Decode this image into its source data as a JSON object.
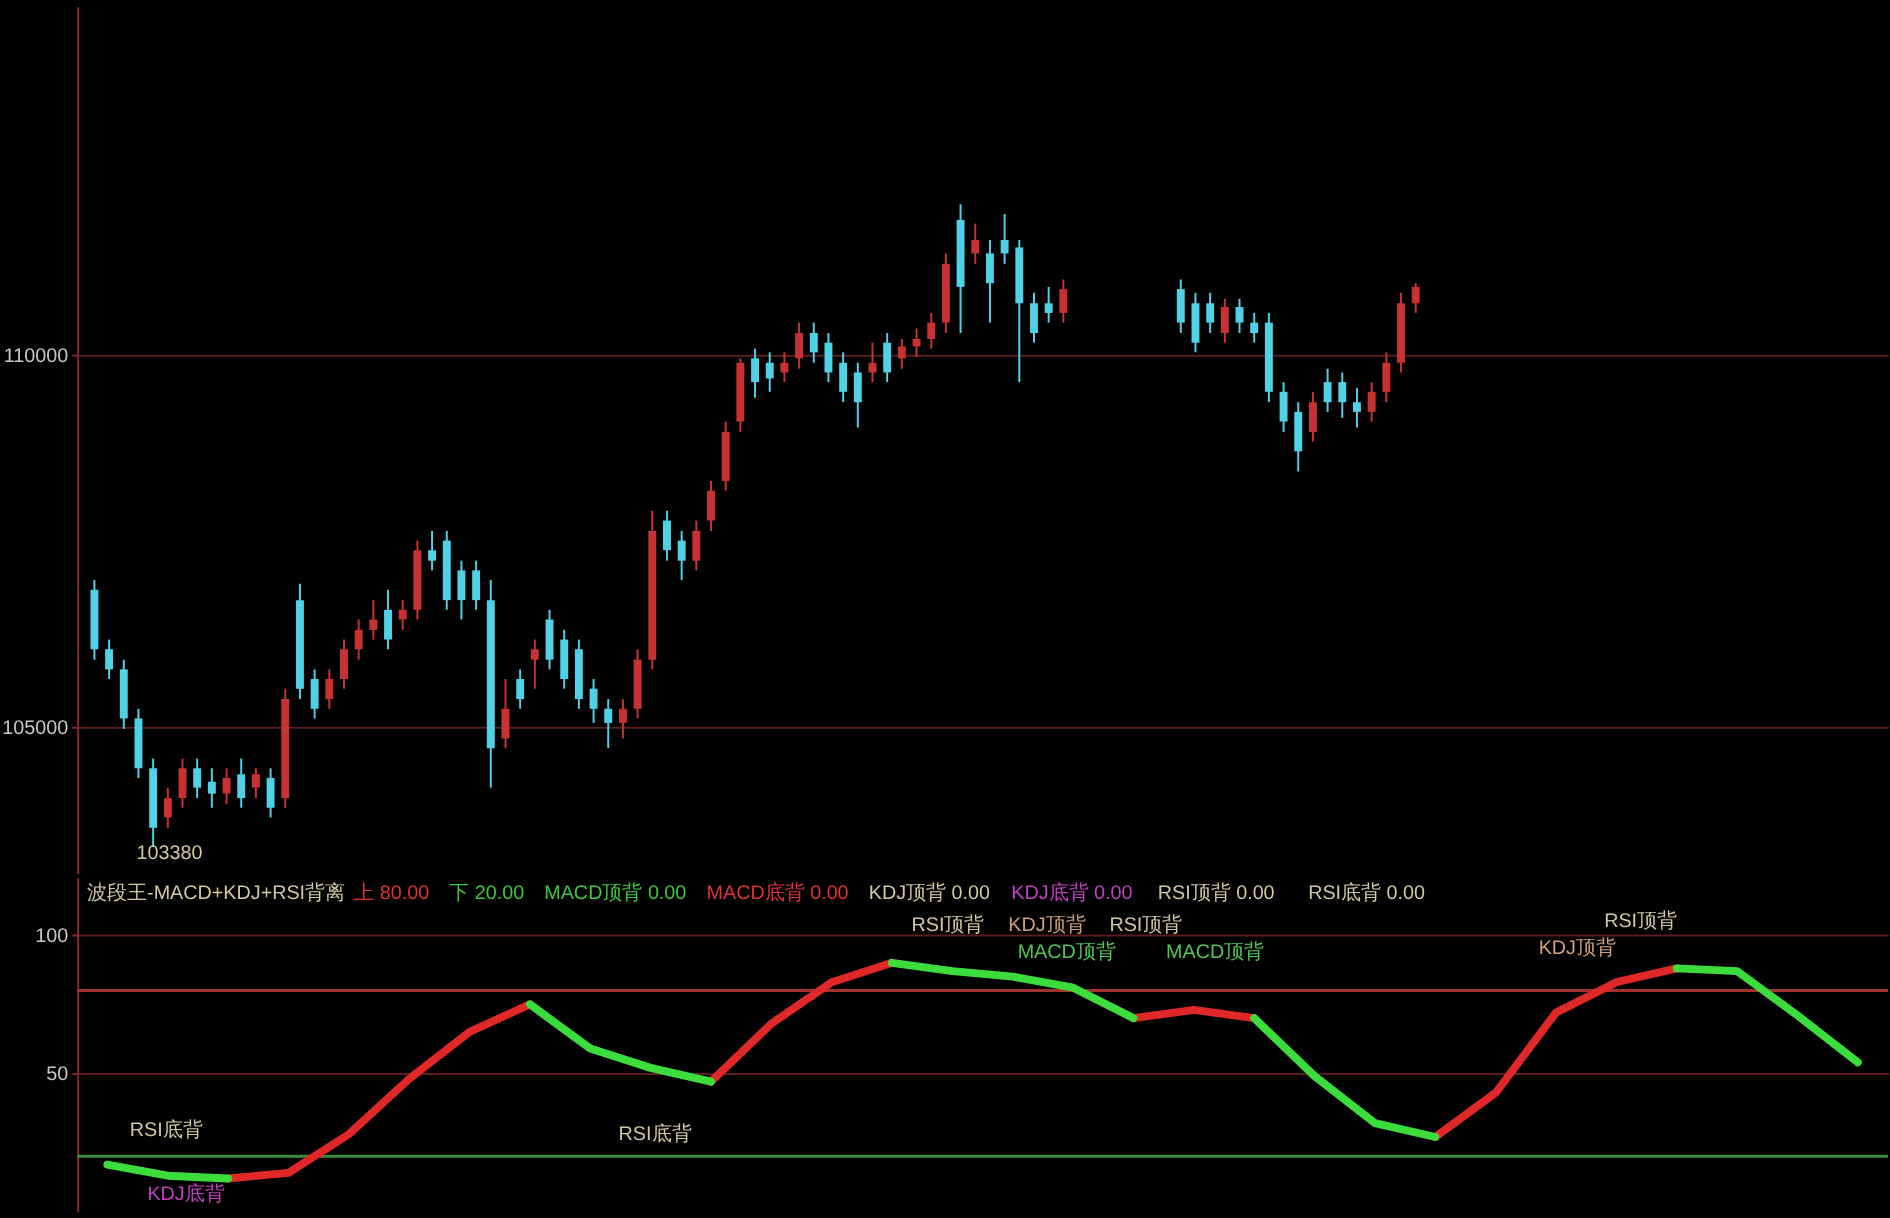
{
  "chart_data": [
    {
      "type": "candlestick",
      "tick_labels": "y",
      "grid": "y",
      "ylim": [
        103030,
        114680
      ],
      "yticks": [
        105000,
        110000
      ],
      "annotations": [
        "103380"
      ],
      "categories": [
        null,
        null,
        null,
        null,
        null,
        null,
        null,
        null,
        null,
        null,
        null,
        null,
        null,
        null,
        null,
        null,
        null,
        null,
        null,
        null,
        null,
        null,
        null,
        null,
        null,
        null,
        null,
        null,
        null,
        null,
        null,
        null,
        null,
        null,
        null,
        null,
        null,
        null,
        null,
        null,
        null,
        null,
        null,
        null,
        null,
        null,
        null,
        null,
        null,
        null,
        null,
        null,
        null,
        null,
        null,
        null,
        null,
        null,
        null,
        null,
        null,
        null,
        null,
        null,
        null,
        null,
        null,
        null,
        null,
        null,
        null,
        null,
        null,
        null,
        null,
        null,
        null,
        null,
        null,
        null,
        null,
        null,
        null,
        null,
        null,
        null,
        null,
        null,
        null,
        null,
        null,
        null,
        null,
        null,
        null,
        null,
        null,
        null,
        null,
        null,
        null,
        null,
        null,
        null,
        null,
        null,
        null,
        null,
        null,
        null,
        null,
        null,
        null,
        null,
        null,
        null,
        null,
        null,
        null,
        null,
        null,
        null
      ],
      "ohlc": [
        [
          106840,
          106970,
          105900,
          106040
        ],
        [
          106040,
          106170,
          105640,
          105770
        ],
        [
          105770,
          105900,
          104970,
          105110
        ],
        [
          105110,
          105240,
          104310,
          104440
        ],
        [
          104440,
          104570,
          103380,
          103640
        ],
        [
          103780,
          104180,
          103640,
          104040
        ],
        [
          104040,
          104570,
          103910,
          104440
        ],
        [
          104440,
          104570,
          104040,
          104180
        ],
        [
          104260,
          104440,
          103910,
          104100
        ],
        [
          104100,
          104440,
          103960,
          104310
        ],
        [
          104360,
          104570,
          103910,
          104040
        ],
        [
          104180,
          104440,
          104040,
          104360
        ],
        [
          104310,
          104440,
          103780,
          103910
        ],
        [
          104040,
          105510,
          103910,
          105370
        ],
        [
          106700,
          106920,
          105370,
          105510
        ],
        [
          105640,
          105770,
          105110,
          105240
        ],
        [
          105370,
          105770,
          105240,
          105640
        ],
        [
          105640,
          106170,
          105510,
          106040
        ],
        [
          106040,
          106440,
          105900,
          106300
        ],
        [
          106300,
          106700,
          106170,
          106440
        ],
        [
          106570,
          106840,
          106040,
          106170
        ],
        [
          106440,
          106700,
          106300,
          106570
        ],
        [
          106570,
          107500,
          106440,
          107370
        ],
        [
          107370,
          107630,
          107100,
          107230
        ],
        [
          107500,
          107630,
          106570,
          106700
        ],
        [
          107100,
          107230,
          106440,
          106700
        ],
        [
          107100,
          107230,
          106570,
          106700
        ],
        [
          106700,
          106970,
          104180,
          104710
        ],
        [
          104840,
          105640,
          104710,
          105240
        ],
        [
          105640,
          105770,
          105240,
          105370
        ],
        [
          105900,
          106170,
          105510,
          106040
        ],
        [
          106440,
          106570,
          105770,
          105900
        ],
        [
          106170,
          106300,
          105510,
          105640
        ],
        [
          106040,
          106170,
          105240,
          105370
        ],
        [
          105510,
          105640,
          105050,
          105240
        ],
        [
          105240,
          105370,
          104710,
          105050
        ],
        [
          105050,
          105370,
          104840,
          105240
        ],
        [
          105240,
          106040,
          105110,
          105900
        ],
        [
          105900,
          107900,
          105770,
          107630
        ],
        [
          107770,
          107900,
          107230,
          107370
        ],
        [
          107500,
          107630,
          106970,
          107230
        ],
        [
          107230,
          107770,
          107100,
          107630
        ],
        [
          107770,
          108300,
          107630,
          108170
        ],
        [
          108300,
          109100,
          108170,
          108960
        ],
        [
          109100,
          109950,
          108960,
          109890
        ],
        [
          109950,
          110080,
          109420,
          109630
        ],
        [
          109890,
          110030,
          109500,
          109680
        ],
        [
          109760,
          110030,
          109630,
          109890
        ],
        [
          109950,
          110430,
          109810,
          110290
        ],
        [
          110290,
          110430,
          109890,
          110030
        ],
        [
          110160,
          110290,
          109630,
          109760
        ],
        [
          109890,
          110030,
          109360,
          109500
        ],
        [
          109760,
          109890,
          109020,
          109360
        ],
        [
          109760,
          110160,
          109630,
          109890
        ],
        [
          110160,
          110290,
          109630,
          109760
        ],
        [
          109950,
          110210,
          109810,
          110110
        ],
        [
          110110,
          110350,
          109970,
          110210
        ],
        [
          110210,
          110560,
          110080,
          110430
        ],
        [
          110430,
          111360,
          110290,
          111220
        ],
        [
          111810,
          112020,
          110290,
          110910
        ],
        [
          111360,
          111760,
          111220,
          111540
        ],
        [
          111360,
          111540,
          110430,
          110960
        ],
        [
          111540,
          111890,
          111220,
          111360
        ],
        [
          111440,
          111540,
          109630,
          110690
        ],
        [
          110690,
          110830,
          110160,
          110290
        ],
        [
          110690,
          110910,
          110430,
          110560
        ],
        [
          110560,
          111010,
          110430,
          110880
        ],
        null,
        null,
        null,
        null,
        null,
        null,
        null,
        [
          110880,
          111010,
          110290,
          110430
        ],
        [
          110690,
          110830,
          110030,
          110160
        ],
        [
          110690,
          110830,
          110290,
          110430
        ],
        [
          110290,
          110750,
          110160,
          110640
        ],
        [
          110640,
          110750,
          110290,
          110430
        ],
        [
          110430,
          110560,
          110160,
          110290
        ],
        [
          110430,
          110560,
          109360,
          109500
        ],
        [
          109500,
          109630,
          108960,
          109100
        ],
        [
          109230,
          109360,
          108430,
          108700
        ],
        [
          108960,
          109500,
          108830,
          109360
        ],
        [
          109630,
          109810,
          109230,
          109360
        ],
        [
          109630,
          109760,
          109150,
          109360
        ],
        [
          109360,
          109550,
          109020,
          109230
        ],
        [
          109230,
          109630,
          109100,
          109500
        ],
        [
          109500,
          110030,
          109360,
          109890
        ],
        [
          109890,
          110830,
          109760,
          110690
        ],
        [
          110690,
          110960,
          110560,
          110910
        ],
        null,
        null,
        null,
        null,
        null,
        null,
        null,
        null,
        null,
        null,
        null,
        null,
        null,
        null,
        null,
        null,
        null,
        null,
        null,
        null,
        null,
        null,
        null,
        null,
        null,
        null,
        null,
        null,
        null,
        null,
        null
      ]
    },
    {
      "type": "line",
      "tick_labels": "y",
      "grid": "y",
      "title": "波段王-MACD+KDJ+RSI背离",
      "ylim": [
        0,
        121
      ],
      "yticks": [
        50,
        100
      ],
      "annotations": [
        "上 80.00",
        "下 20.00",
        "MACD顶背 0.00",
        "MACD底背 0.00",
        "KDJ顶背 0.00",
        "KDJ底背 0.00",
        "RSI顶背 0.00",
        "RSI底背 0.00",
        "RSI底背",
        "KDJ底背",
        "RSI底背",
        "RSI顶背",
        "KDJ顶背",
        "MACD顶背",
        "RSI顶背",
        "MACD顶背",
        "KDJ顶背",
        "RSI顶背"
      ],
      "ref_lines": [
        {
          "axis": "y",
          "value": 80,
          "color": "#a03232"
        },
        {
          "axis": "y",
          "value": 20,
          "color": "#3c8c3c"
        }
      ],
      "categories": [
        null,
        null,
        null,
        null,
        null,
        null,
        null,
        null,
        null,
        null,
        null,
        null,
        null,
        null,
        null,
        null,
        null,
        null,
        null,
        null,
        null,
        null,
        null,
        null,
        null,
        null,
        null,
        null,
        null,
        null
      ],
      "series": [
        {
          "color": "#e02828",
          "values": [
            null,
            null,
            12,
            14,
            28,
            48,
            65,
            75,
            null,
            null,
            47,
            68,
            83,
            90,
            null,
            null,
            null,
            70,
            73,
            70,
            null,
            null,
            27,
            43,
            72,
            83,
            88,
            null,
            null,
            null
          ]
        },
        {
          "color": "#3cdc3c",
          "values": [
            17,
            13,
            12,
            null,
            null,
            null,
            null,
            75,
            59,
            52,
            47,
            null,
            null,
            90,
            87,
            85,
            81,
            70,
            null,
            70,
            49,
            32,
            27,
            null,
            null,
            null,
            88,
            87,
            71,
            54
          ]
        }
      ]
    }
  ]
}
